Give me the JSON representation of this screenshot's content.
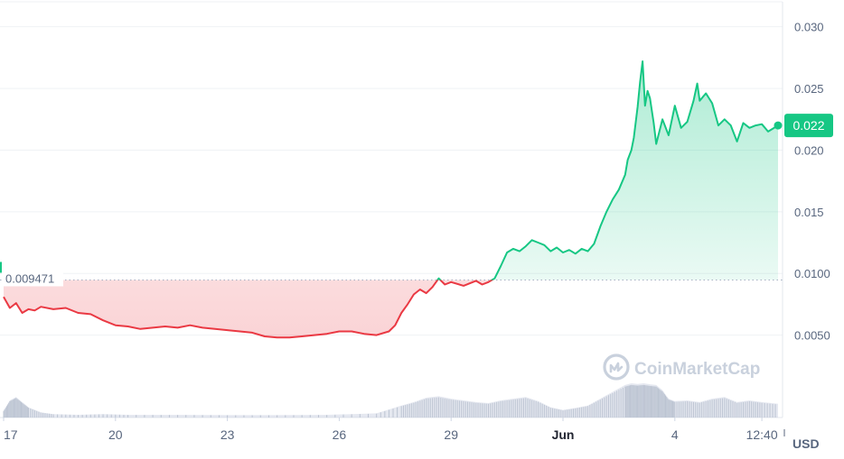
{
  "chart_data": {
    "type": "area",
    "title": "",
    "xlabel": "",
    "ylabel": "",
    "currency": "USD",
    "watermark": "CoinMarketCap",
    "baseline": {
      "value": 0.009471,
      "label": "0.009471"
    },
    "current": {
      "value": 0.022,
      "label": "0.022"
    },
    "ylim": [
      0.0,
      0.031
    ],
    "y_ticks": [
      {
        "value": 0.03,
        "label": "0.030"
      },
      {
        "value": 0.025,
        "label": "0.025"
      },
      {
        "value": 0.02,
        "label": "0.020"
      },
      {
        "value": 0.015,
        "label": "0.015"
      },
      {
        "value": 0.01,
        "label": "0.0100"
      },
      {
        "value": 0.005,
        "label": "0.0050"
      }
    ],
    "x_ticks": [
      {
        "t": 0.0,
        "label": "17",
        "bold": false
      },
      {
        "t": 9.0,
        "label": "20",
        "bold": false
      },
      {
        "t": 18.0,
        "label": "23",
        "bold": false
      },
      {
        "t": 27.0,
        "label": "26",
        "bold": false
      },
      {
        "t": 36.0,
        "label": "29",
        "bold": false
      },
      {
        "t": 45.0,
        "label": "Jun",
        "bold": true
      },
      {
        "t": 54.0,
        "label": "4",
        "bold": false
      },
      {
        "t": 61.0,
        "label": "12:40",
        "bold": false
      }
    ],
    "xlim": [
      0.0,
      62.3
    ],
    "price_series": [
      [
        0.0,
        0.0081
      ],
      [
        0.5,
        0.0072
      ],
      [
        1.0,
        0.0076
      ],
      [
        1.5,
        0.0068
      ],
      [
        2.0,
        0.0071
      ],
      [
        2.5,
        0.007
      ],
      [
        3.0,
        0.0073
      ],
      [
        4.0,
        0.0071
      ],
      [
        5.0,
        0.0072
      ],
      [
        6.0,
        0.0068
      ],
      [
        7.0,
        0.0067
      ],
      [
        8.0,
        0.0062
      ],
      [
        9.0,
        0.0058
      ],
      [
        10.0,
        0.0057
      ],
      [
        11.0,
        0.0055
      ],
      [
        12.0,
        0.0056
      ],
      [
        13.0,
        0.0057
      ],
      [
        14.0,
        0.0056
      ],
      [
        15.0,
        0.0058
      ],
      [
        16.0,
        0.0056
      ],
      [
        17.0,
        0.0055
      ],
      [
        18.0,
        0.0054
      ],
      [
        19.0,
        0.0053
      ],
      [
        20.0,
        0.0052
      ],
      [
        21.0,
        0.0049
      ],
      [
        22.0,
        0.0048
      ],
      [
        23.0,
        0.0048
      ],
      [
        24.0,
        0.0049
      ],
      [
        25.0,
        0.005
      ],
      [
        26.0,
        0.0051
      ],
      [
        27.0,
        0.0053
      ],
      [
        28.0,
        0.0053
      ],
      [
        29.0,
        0.0051
      ],
      [
        30.0,
        0.005
      ],
      [
        31.0,
        0.0053
      ],
      [
        31.5,
        0.0058
      ],
      [
        32.0,
        0.0068
      ],
      [
        32.5,
        0.0075
      ],
      [
        33.0,
        0.0083
      ],
      [
        33.5,
        0.0087
      ],
      [
        34.0,
        0.0084
      ],
      [
        34.5,
        0.0089
      ],
      [
        35.0,
        0.0096
      ],
      [
        35.5,
        0.0091
      ],
      [
        36.0,
        0.0093
      ],
      [
        37.0,
        0.009
      ],
      [
        38.0,
        0.0094
      ],
      [
        38.5,
        0.0091
      ],
      [
        39.0,
        0.0093
      ],
      [
        39.5,
        0.0096
      ],
      [
        40.0,
        0.0106
      ],
      [
        40.5,
        0.0117
      ],
      [
        41.0,
        0.012
      ],
      [
        41.5,
        0.0118
      ],
      [
        42.0,
        0.0122
      ],
      [
        42.5,
        0.0127
      ],
      [
        43.0,
        0.0125
      ],
      [
        43.5,
        0.0123
      ],
      [
        44.0,
        0.0118
      ],
      [
        44.5,
        0.0121
      ],
      [
        45.0,
        0.0117
      ],
      [
        45.5,
        0.0119
      ],
      [
        46.0,
        0.0116
      ],
      [
        46.5,
        0.012
      ],
      [
        47.0,
        0.0118
      ],
      [
        47.5,
        0.0124
      ],
      [
        48.0,
        0.0138
      ],
      [
        48.5,
        0.015
      ],
      [
        49.0,
        0.016
      ],
      [
        49.5,
        0.0168
      ],
      [
        50.0,
        0.018
      ],
      [
        50.2,
        0.0192
      ],
      [
        50.5,
        0.02
      ],
      [
        50.7,
        0.021
      ],
      [
        51.0,
        0.0235
      ],
      [
        51.2,
        0.0255
      ],
      [
        51.4,
        0.0272
      ],
      [
        51.6,
        0.0236
      ],
      [
        51.8,
        0.0248
      ],
      [
        52.0,
        0.0242
      ],
      [
        52.3,
        0.0222
      ],
      [
        52.5,
        0.0205
      ],
      [
        53.0,
        0.0225
      ],
      [
        53.5,
        0.0212
      ],
      [
        54.0,
        0.0236
      ],
      [
        54.5,
        0.0218
      ],
      [
        55.0,
        0.0223
      ],
      [
        55.5,
        0.024
      ],
      [
        55.8,
        0.0254
      ],
      [
        56.0,
        0.024
      ],
      [
        56.5,
        0.0246
      ],
      [
        57.0,
        0.0238
      ],
      [
        57.5,
        0.022
      ],
      [
        58.0,
        0.0225
      ],
      [
        58.5,
        0.022
      ],
      [
        59.0,
        0.0207
      ],
      [
        59.5,
        0.0222
      ],
      [
        60.0,
        0.0218
      ],
      [
        60.5,
        0.022
      ],
      [
        61.0,
        0.0221
      ],
      [
        61.5,
        0.0215
      ],
      [
        62.3,
        0.022
      ]
    ],
    "volume_series": [
      [
        0.0,
        0.2
      ],
      [
        0.5,
        0.5
      ],
      [
        1.0,
        0.6
      ],
      [
        1.5,
        0.45
      ],
      [
        2.0,
        0.3
      ],
      [
        3.0,
        0.15
      ],
      [
        4.0,
        0.1
      ],
      [
        6.0,
        0.08
      ],
      [
        8.0,
        0.1
      ],
      [
        10.0,
        0.08
      ],
      [
        14.0,
        0.08
      ],
      [
        18.0,
        0.07
      ],
      [
        22.0,
        0.07
      ],
      [
        26.0,
        0.08
      ],
      [
        30.0,
        0.12
      ],
      [
        32.0,
        0.35
      ],
      [
        33.0,
        0.45
      ],
      [
        34.0,
        0.58
      ],
      [
        35.0,
        0.62
      ],
      [
        36.0,
        0.55
      ],
      [
        37.0,
        0.5
      ],
      [
        38.0,
        0.45
      ],
      [
        39.0,
        0.42
      ],
      [
        40.0,
        0.5
      ],
      [
        41.0,
        0.55
      ],
      [
        42.0,
        0.6
      ],
      [
        43.0,
        0.48
      ],
      [
        44.0,
        0.3
      ],
      [
        45.0,
        0.22
      ],
      [
        46.0,
        0.28
      ],
      [
        47.0,
        0.35
      ],
      [
        48.0,
        0.55
      ],
      [
        49.0,
        0.75
      ],
      [
        50.0,
        0.95
      ],
      [
        50.5,
        1.0
      ],
      [
        51.0,
        0.98
      ],
      [
        51.5,
        1.0
      ],
      [
        52.0,
        0.97
      ],
      [
        52.5,
        0.95
      ],
      [
        53.0,
        0.8
      ],
      [
        53.5,
        0.55
      ],
      [
        54.0,
        0.48
      ],
      [
        55.0,
        0.5
      ],
      [
        56.0,
        0.45
      ],
      [
        57.0,
        0.55
      ],
      [
        58.0,
        0.6
      ],
      [
        59.0,
        0.45
      ],
      [
        60.0,
        0.5
      ],
      [
        61.0,
        0.45
      ],
      [
        62.3,
        0.4
      ]
    ],
    "grid": true,
    "colors": {
      "up": "#16c784",
      "down": "#ea3943",
      "grid": "#eff2f5",
      "axis_text": "#58667e",
      "baseline_label": "#58667e",
      "volume": "#cfd6e4",
      "watermark": "#c9d1dd"
    }
  }
}
